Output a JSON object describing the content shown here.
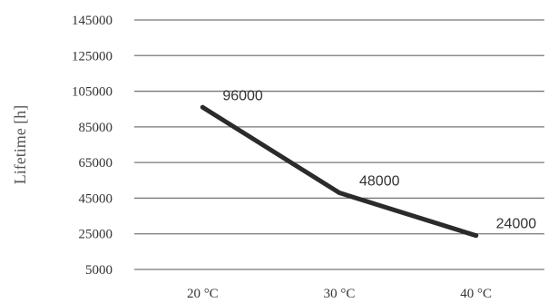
{
  "chart_data": {
    "type": "line",
    "title": "",
    "xlabel": "",
    "ylabel": "Lifetime [h]",
    "categories": [
      "20 °C",
      "30 °C",
      "40 °C"
    ],
    "series": [
      {
        "values": [
          96000,
          48000,
          24000
        ]
      }
    ],
    "data_labels": [
      "96000",
      "48000",
      "24000"
    ],
    "yticks": [
      5000,
      25000,
      45000,
      65000,
      85000,
      105000,
      125000,
      145000
    ],
    "ylim": [
      5000,
      145000
    ],
    "grid": true,
    "legend": "none",
    "line_color": "#2b2b2b"
  }
}
